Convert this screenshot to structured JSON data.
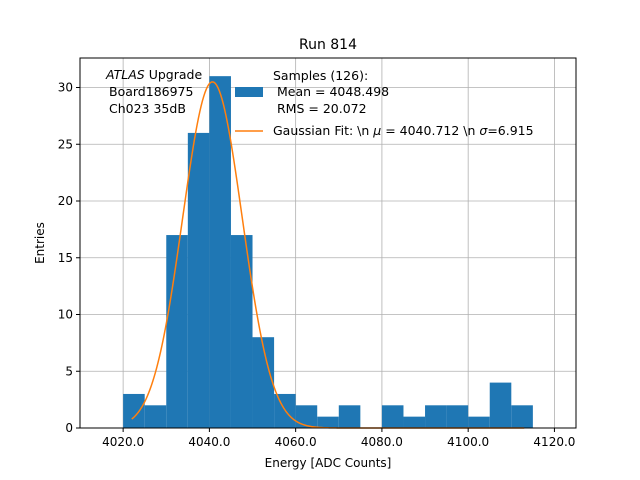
{
  "chart_data": {
    "type": "bar",
    "title": "Run 814",
    "xlabel": "Energy [ADC Counts]",
    "ylabel": "Entries",
    "xlim": [
      4010,
      4125
    ],
    "ylim": [
      0,
      32.6
    ],
    "grid": true,
    "x_ticks": [
      4020,
      4040,
      4060,
      4080,
      4100,
      4120
    ],
    "x_tick_labels": [
      "4020.0",
      "4040.0",
      "4060.0",
      "4080.0",
      "4100.0",
      "4120.0"
    ],
    "y_ticks": [
      0,
      5,
      10,
      15,
      20,
      25,
      30
    ],
    "y_tick_labels": [
      "0",
      "5",
      "10",
      "15",
      "20",
      "25",
      "30"
    ],
    "bins": {
      "edges": [
        4020,
        4025,
        4030,
        4035,
        4040,
        4045,
        4050,
        4055,
        4060,
        4065,
        4070,
        4075,
        4080,
        4085,
        4090,
        4095,
        4100,
        4105,
        4110,
        4115
      ],
      "counts": [
        3,
        2,
        17,
        26,
        31,
        17,
        8,
        3,
        2,
        1,
        2,
        0,
        2,
        1,
        2,
        2,
        1,
        4,
        2
      ]
    },
    "fit": {
      "mu": 4040.712,
      "sigma": 6.915,
      "amplitude": 30.5,
      "x_range": [
        4022,
        4113
      ]
    },
    "annotation": {
      "italic": "ATLAS",
      "rest": " Upgrade",
      "line2": "Board186975",
      "line3": "Ch023 35dB"
    },
    "legend": {
      "placement": "top-right",
      "hist_lines": [
        "Samples (126):",
        "Mean = 4048.498",
        "RMS = 20.072"
      ],
      "fit_label_1": "Gaussian Fit: \\n ",
      "fit_label_mu": "μ",
      "fit_label_2": " = 4040.712 \\n ",
      "fit_label_sigma": "σ",
      "fit_label_3": "=6.915"
    },
    "colors": {
      "bar": "#1f77b4",
      "fit": "#ff7f0e",
      "grid": "#b0b0b0"
    }
  }
}
